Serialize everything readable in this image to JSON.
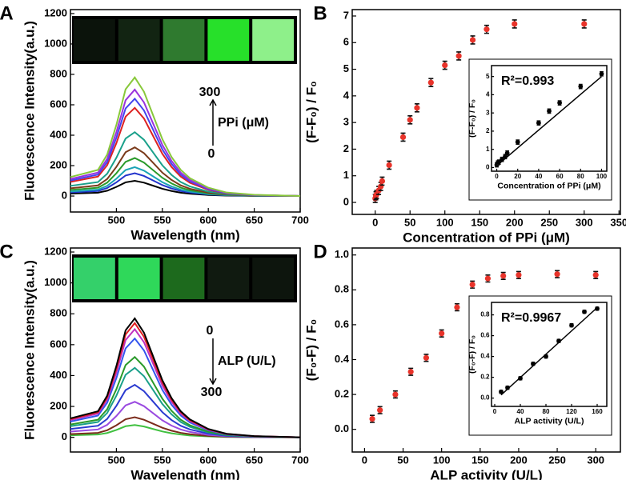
{
  "chart_data": [
    {
      "type": "line",
      "label": "A",
      "xlabel": "Wavelength (nm)",
      "ylabel": "Fluorescence Intensity(a.u.)",
      "xlim": [
        450,
        700
      ],
      "ylim": [
        -105,
        1226
      ],
      "xticks": [
        500,
        550,
        600,
        650,
        700
      ],
      "yticks": [
        0,
        200,
        400,
        600,
        800,
        1000,
        1200
      ],
      "annotations": [
        "300",
        "PPi (μM)",
        "0"
      ],
      "arrow": "up",
      "strip": "rising",
      "x": [
        450,
        480,
        490,
        500,
        510,
        520,
        530,
        540,
        550,
        560,
        570,
        580,
        600,
        620,
        650,
        700
      ],
      "series": [
        {
          "color": "#000000",
          "values": [
            16,
            22,
            35,
            60,
            90,
            100,
            88,
            68,
            48,
            33,
            22,
            15,
            7,
            3,
            1,
            0
          ]
        },
        {
          "color": "#2233cc",
          "values": [
            24,
            33,
            53,
            90,
            135,
            150,
            132,
            102,
            72,
            50,
            33,
            23,
            11,
            5,
            2,
            0
          ]
        },
        {
          "color": "#1aa3b5",
          "values": [
            30,
            42,
            67,
            114,
            171,
            190,
            167,
            129,
            91,
            63,
            42,
            29,
            13,
            6,
            2,
            0
          ]
        },
        {
          "color": "#2a9a2a",
          "values": [
            40,
            55,
            88,
            150,
            225,
            250,
            220,
            170,
            120,
            83,
            55,
            38,
            18,
            8,
            3,
            0
          ]
        },
        {
          "color": "#7b3b1b",
          "values": [
            51,
            70,
            112,
            192,
            288,
            320,
            282,
            218,
            154,
            106,
            70,
            48,
            22,
            10,
            3,
            0
          ]
        },
        {
          "color": "#1aa08a",
          "values": [
            67,
            92,
            147,
            252,
            378,
            420,
            370,
            286,
            202,
            139,
            92,
            63,
            29,
            13,
            4,
            0
          ]
        },
        {
          "color": "#dd2222",
          "values": [
            93,
            128,
            203,
            348,
            522,
            580,
            510,
            394,
            278,
            191,
            128,
            87,
            41,
            17,
            6,
            0
          ]
        },
        {
          "color": "#4444ee",
          "values": [
            102,
            141,
            224,
            384,
            576,
            640,
            563,
            435,
            307,
            211,
            141,
            96,
            45,
            19,
            6,
            0
          ]
        },
        {
          "color": "#9933dd",
          "values": [
            112,
            154,
            245,
            420,
            630,
            700,
            616,
            476,
            336,
            231,
            154,
            105,
            49,
            21,
            7,
            0
          ]
        },
        {
          "color": "#88c83a",
          "values": [
            125,
            172,
            273,
            468,
            702,
            780,
            686,
            530,
            374,
            257,
            172,
            117,
            55,
            23,
            8,
            0
          ]
        }
      ]
    },
    {
      "type": "scatter",
      "label": "B",
      "xlabel": "Concentration of PPi (μM)",
      "ylabel": "(F-F₀) / F₀",
      "xlim": [
        -33,
        352
      ],
      "ylim": [
        -0.45,
        7.24
      ],
      "xticks": [
        0,
        50,
        100,
        150,
        200,
        250,
        300,
        350
      ],
      "yticks": [
        0,
        1,
        2,
        3,
        4,
        5,
        6,
        7
      ],
      "color": "#e8332a",
      "x": [
        0,
        1,
        2,
        5,
        8,
        10,
        20,
        40,
        50,
        60,
        80,
        100,
        120,
        140,
        160,
        200,
        300
      ],
      "values": [
        0.15,
        0.25,
        0.3,
        0.45,
        0.6,
        0.8,
        1.4,
        2.45,
        3.1,
        3.55,
        4.5,
        5.15,
        5.5,
        6.1,
        6.5,
        6.7,
        6.7
      ],
      "errors": [
        0.15,
        0.15,
        0.15,
        0.15,
        0.15,
        0.15,
        0.15,
        0.15,
        0.15,
        0.15,
        0.15,
        0.15,
        0.15,
        0.15,
        0.15,
        0.15,
        0.15
      ],
      "inset": {
        "xlabel": "Concentration of PPi (μM)",
        "ylabel": "(F-F₀) / F₀",
        "annotation": "R²=0.993",
        "xlim": [
          -5,
          105
        ],
        "ylim": [
          -0.2,
          5.6
        ],
        "xticks": [
          0,
          20,
          40,
          60,
          80,
          100
        ],
        "yticks": [
          0,
          1,
          2,
          3,
          4,
          5
        ],
        "x": [
          0,
          1,
          2,
          5,
          8,
          10,
          20,
          40,
          50,
          60,
          80,
          100
        ],
        "values": [
          0.15,
          0.25,
          0.3,
          0.45,
          0.6,
          0.8,
          1.4,
          2.45,
          3.1,
          3.55,
          4.45,
          5.15
        ],
        "errors": [
          0.12,
          0.12,
          0.12,
          0.12,
          0.12,
          0.12,
          0.12,
          0.12,
          0.12,
          0.12,
          0.12,
          0.12
        ],
        "fit": {
          "x": [
            0,
            100
          ],
          "values": [
            0.1,
            5.0
          ]
        }
      }
    },
    {
      "type": "line",
      "label": "C",
      "xlabel": "Wavelength (nm)",
      "ylabel": "Fluorescence Intensity(a.u.)",
      "xlim": [
        450,
        700
      ],
      "ylim": [
        -95,
        1226
      ],
      "xticks": [
        500,
        550,
        600,
        650,
        700
      ],
      "yticks": [
        0,
        200,
        400,
        600,
        800,
        1000,
        1200
      ],
      "annotations": [
        "0",
        "ALP (U/L)",
        "300"
      ],
      "arrow": "down",
      "strip": "falling",
      "x": [
        450,
        480,
        490,
        500,
        510,
        520,
        530,
        540,
        550,
        560,
        570,
        580,
        600,
        620,
        650,
        700
      ],
      "series": [
        {
          "color": "#40c040",
          "values": [
            13,
            18,
            28,
            48,
            72,
            80,
            70,
            54,
            38,
            26,
            18,
            12,
            6,
            2,
            1,
            0
          ]
        },
        {
          "color": "#7b2b1b",
          "values": [
            21,
            29,
            46,
            78,
            117,
            130,
            114,
            88,
            62,
            43,
            29,
            20,
            9,
            4,
            1,
            0
          ]
        },
        {
          "color": "#9a4ae0",
          "values": [
            37,
            51,
            81,
            138,
            207,
            230,
            202,
            156,
            110,
            76,
            51,
            35,
            16,
            7,
            2,
            0
          ]
        },
        {
          "color": "#2a3ad0",
          "values": [
            54,
            75,
            119,
            204,
            306,
            340,
            299,
            231,
            163,
            112,
            75,
            51,
            24,
            10,
            3,
            0
          ]
        },
        {
          "color": "#1aa08a",
          "values": [
            72,
            99,
            158,
            270,
            405,
            450,
            396,
            306,
            216,
            149,
            99,
            68,
            32,
            14,
            5,
            0
          ]
        },
        {
          "color": "#2a9a2a",
          "values": [
            83,
            114,
            182,
            312,
            468,
            520,
            458,
            354,
            250,
            172,
            114,
            78,
            36,
            16,
            5,
            0
          ]
        },
        {
          "color": "#3355ee",
          "values": [
            102,
            141,
            224,
            384,
            576,
            640,
            563,
            435,
            307,
            211,
            141,
            96,
            45,
            19,
            6,
            0
          ]
        },
        {
          "color": "#c030c0",
          "values": [
            112,
            154,
            245,
            420,
            630,
            700,
            616,
            476,
            336,
            231,
            154,
            105,
            49,
            21,
            7,
            0
          ]
        },
        {
          "color": "#e02020",
          "values": [
            118,
            163,
            259,
            444,
            666,
            740,
            651,
            503,
            355,
            244,
            163,
            111,
            52,
            22,
            7,
            0
          ]
        },
        {
          "color": "#000000",
          "values": [
            123,
            169,
            270,
            462,
            693,
            770,
            678,
            524,
            370,
            254,
            169,
            116,
            54,
            23,
            8,
            0
          ]
        }
      ]
    },
    {
      "type": "scatter",
      "label": "D",
      "xlabel": "ALP activity (U/L)",
      "ylabel": "(F₀-F) / F₀",
      "xlim": [
        -16,
        332
      ],
      "ylim": [
        -0.13,
        1.04
      ],
      "xticks": [
        0,
        50,
        100,
        150,
        200,
        250,
        300
      ],
      "yticks": [
        {
          "value": 0,
          "label": "0.0"
        },
        0.2,
        0.4,
        0.6,
        0.8,
        {
          "value": 1,
          "label": "1.0"
        }
      ],
      "color": "#e8332a",
      "x": [
        10,
        20,
        40,
        60,
        80,
        100,
        120,
        140,
        160,
        180,
        200,
        250,
        300
      ],
      "values": [
        0.06,
        0.11,
        0.2,
        0.33,
        0.41,
        0.55,
        0.7,
        0.83,
        0.865,
        0.88,
        0.885,
        0.89,
        0.885
      ],
      "errors": [
        0.02,
        0.02,
        0.02,
        0.02,
        0.02,
        0.02,
        0.02,
        0.02,
        0.02,
        0.02,
        0.02,
        0.02,
        0.02
      ],
      "inset": {
        "xlabel": "ALP activity (U/L)",
        "ylabel": "(F₀-F) / F₀",
        "annotation": "R²=0.9967",
        "xlim": [
          -5,
          175
        ],
        "ylim": [
          -0.08,
          0.92
        ],
        "xticks": [
          0,
          40,
          80,
          120,
          160
        ],
        "yticks": [
          {
            "value": 0,
            "label": "0.0"
          },
          0.2,
          0.4,
          0.6,
          0.8
        ],
        "x": [
          10,
          20,
          40,
          60,
          80,
          100,
          120,
          140,
          160
        ],
        "values": [
          0.06,
          0.1,
          0.19,
          0.33,
          0.4,
          0.55,
          0.7,
          0.83,
          0.86
        ],
        "errors": [
          0.015,
          0.015,
          0.015,
          0.015,
          0.015,
          0.015,
          0.015,
          0.015,
          0.015
        ],
        "fit": {
          "x": [
            10,
            160
          ],
          "values": [
            0.03,
            0.87
          ]
        }
      }
    }
  ]
}
